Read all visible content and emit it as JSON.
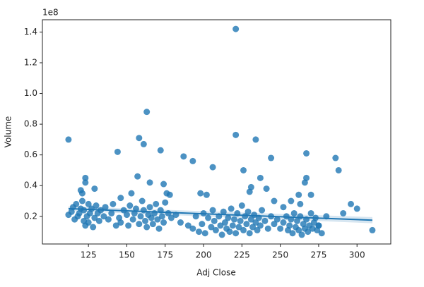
{
  "chart_data": {
    "type": "scatter",
    "x_label": "Adj Close",
    "y_label": "Volume",
    "y_offset_label": "1e8",
    "color": "#1f77b4",
    "xlim": [
      95,
      322
    ],
    "ylim": [
      0.02,
      1.48
    ],
    "xticks": [
      125,
      150,
      175,
      200,
      225,
      250,
      275,
      300
    ],
    "yticks": [
      0.2,
      0.4,
      0.6,
      0.8,
      {
        "value": 1,
        "label": "1.0"
      },
      1.2,
      1.4
    ],
    "x": [
      112,
      221,
      163,
      158,
      161,
      172,
      144,
      221,
      234,
      267,
      286,
      288,
      187,
      193,
      244,
      206,
      226,
      157,
      165,
      123,
      123,
      174,
      237,
      231,
      241,
      230,
      267,
      266,
      270,
      198,
      202,
      178,
      176,
      146,
      153,
      129,
      120,
      121,
      246,
      257,
      262,
      263,
      252,
      296,
      300,
      310,
      291,
      280,
      277,
      275,
      112,
      114,
      115,
      116,
      117,
      118,
      119,
      120,
      121,
      122,
      122,
      123,
      124,
      125,
      125,
      126,
      127,
      128,
      129,
      130,
      131,
      132,
      133,
      135,
      136,
      138,
      140,
      141,
      143,
      145,
      146,
      148,
      150,
      151,
      152,
      154,
      155,
      156,
      158,
      159,
      160,
      161,
      162,
      163,
      164,
      165,
      166,
      167,
      168,
      169,
      170,
      171,
      172,
      173,
      174,
      175,
      177,
      179,
      182,
      185,
      190,
      193,
      195,
      197,
      199,
      200,
      201,
      203,
      205,
      206,
      207,
      208,
      210,
      211,
      212,
      213,
      214,
      215,
      216,
      217,
      218,
      219,
      220,
      221,
      222,
      223,
      224,
      225,
      226,
      227,
      228,
      229,
      230,
      231,
      232,
      233,
      234,
      235,
      236,
      237,
      238,
      240,
      242,
      244,
      246,
      248,
      250,
      252,
      254,
      255,
      256,
      257,
      258,
      259,
      260,
      261,
      262,
      263,
      264,
      265,
      266,
      267,
      268,
      269,
      270,
      271,
      272,
      273,
      274,
      275
    ],
    "values": [
      0.7,
      1.42,
      0.88,
      0.71,
      0.67,
      0.63,
      0.62,
      0.73,
      0.7,
      0.61,
      0.58,
      0.5,
      0.59,
      0.56,
      0.58,
      0.52,
      0.5,
      0.46,
      0.42,
      0.45,
      0.42,
      0.41,
      0.45,
      0.39,
      0.38,
      0.36,
      0.45,
      0.42,
      0.34,
      0.35,
      0.34,
      0.34,
      0.35,
      0.32,
      0.35,
      0.38,
      0.37,
      0.35,
      0.3,
      0.3,
      0.34,
      0.28,
      0.26,
      0.28,
      0.25,
      0.11,
      0.22,
      0.2,
      0.09,
      0.14,
      0.21,
      0.23,
      0.26,
      0.18,
      0.28,
      0.2,
      0.22,
      0.25,
      0.3,
      0.17,
      0.24,
      0.14,
      0.2,
      0.28,
      0.16,
      0.22,
      0.25,
      0.13,
      0.19,
      0.27,
      0.22,
      0.17,
      0.24,
      0.2,
      0.26,
      0.18,
      0.22,
      0.28,
      0.14,
      0.19,
      0.16,
      0.24,
      0.21,
      0.14,
      0.27,
      0.18,
      0.22,
      0.25,
      0.15,
      0.2,
      0.3,
      0.24,
      0.17,
      0.13,
      0.21,
      0.26,
      0.19,
      0.15,
      0.22,
      0.28,
      0.18,
      0.12,
      0.24,
      0.2,
      0.16,
      0.29,
      0.22,
      0.19,
      0.21,
      0.16,
      0.14,
      0.12,
      0.2,
      0.1,
      0.15,
      0.22,
      0.09,
      0.19,
      0.13,
      0.24,
      0.17,
      0.11,
      0.2,
      0.14,
      0.08,
      0.23,
      0.16,
      0.12,
      0.19,
      0.1,
      0.25,
      0.14,
      0.18,
      0.09,
      0.22,
      0.13,
      0.17,
      0.27,
      0.11,
      0.2,
      0.15,
      0.23,
      0.09,
      0.18,
      0.13,
      0.21,
      0.16,
      0.11,
      0.19,
      0.14,
      0.24,
      0.17,
      0.12,
      0.2,
      0.15,
      0.18,
      0.12,
      0.16,
      0.2,
      0.11,
      0.14,
      0.18,
      0.09,
      0.22,
      0.13,
      0.17,
      0.11,
      0.2,
      0.08,
      0.15,
      0.12,
      0.18,
      0.1,
      0.14,
      0.22,
      0.12,
      0.16,
      0.19,
      0.11,
      0.14
    ],
    "regression": {
      "x": [
        112,
        310
      ],
      "values": [
        0.25,
        0.175
      ],
      "ci_lower": [
        0.235,
        0.155
      ],
      "ci_upper": [
        0.265,
        0.195
      ]
    }
  }
}
